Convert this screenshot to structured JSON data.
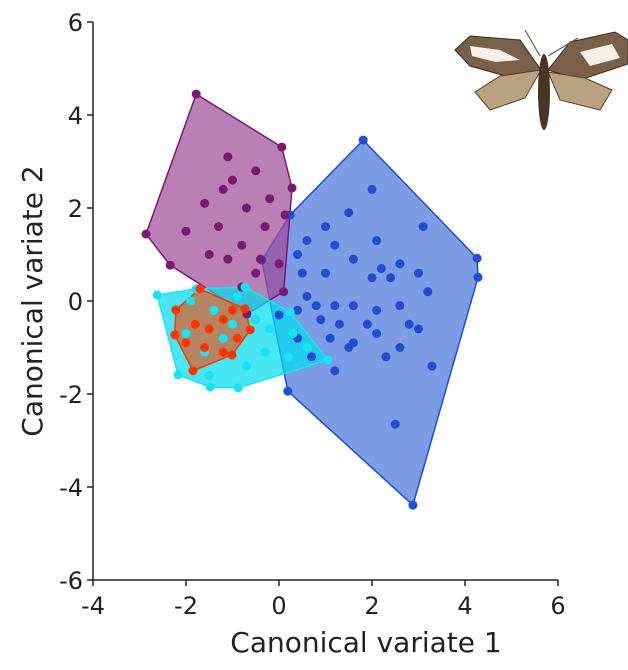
{
  "chart_data": {
    "type": "scatter",
    "x_label": "Canonical variate 1",
    "y_label": "Canonical variate 2",
    "xlim": [
      -4,
      6
    ],
    "ylim": [
      -6,
      6
    ],
    "xticks": [
      -4,
      -2,
      0,
      2,
      4,
      6
    ],
    "yticks": [
      -6,
      -4,
      -2,
      0,
      2,
      4,
      6
    ],
    "hulls": true,
    "series": [
      {
        "color": "#1f4fd0",
        "hull_color": "#4a76dc",
        "x": [
          1.81,
          4.26,
          4.28,
          3.29,
          2.88,
          0.19,
          -0.37,
          0.24,
          2.0,
          1.5,
          1.0,
          0.6,
          1.2,
          2.1,
          3.1,
          0.4,
          1.6,
          2.2,
          2.6,
          0.5,
          1.0,
          2.0,
          2.4,
          3.0,
          3.2,
          0.6,
          0.8,
          1.2,
          1.6,
          2.1,
          2.6,
          0.9,
          1.3,
          1.9,
          2.8,
          1.1,
          1.6,
          2.1,
          2.6,
          3.0,
          0.4,
          0.7,
          1.2,
          1.5,
          2.5,
          0.0,
          0.4,
          2.3
        ],
        "values": [
          3.46,
          0.92,
          0.51,
          -1.4,
          -4.39,
          -1.94,
          0.88,
          1.85,
          2.4,
          1.9,
          1.6,
          1.3,
          1.2,
          1.3,
          1.6,
          1.0,
          0.9,
          0.7,
          0.8,
          0.6,
          0.6,
          0.5,
          0.5,
          0.6,
          0.2,
          0.1,
          -0.1,
          -0.1,
          -0.1,
          -0.2,
          -0.1,
          -0.4,
          -0.5,
          -0.5,
          -0.5,
          -0.8,
          -0.9,
          -0.7,
          -1.0,
          -0.6,
          -0.8,
          -1.2,
          -1.5,
          -1.0,
          -2.65,
          -0.3,
          -0.2,
          -1.2
        ]
      },
      {
        "color": "#7a1a74",
        "hull_color": "#a04e98",
        "x": [
          -1.78,
          0.06,
          0.28,
          -2.86,
          -2.34,
          -0.69,
          0.13,
          -1.1,
          -1.0,
          -0.5,
          -1.2,
          -1.6,
          -0.7,
          -2.0,
          -1.5,
          -1.1,
          -0.8,
          -0.3,
          -0.5,
          -0.8,
          0.0,
          -0.2,
          -1.3,
          -0.4,
          0.1
        ],
        "values": [
          4.45,
          3.31,
          2.43,
          1.44,
          0.77,
          -0.28,
          1.85,
          3.1,
          2.6,
          2.8,
          2.4,
          2.1,
          2.0,
          1.5,
          1.0,
          0.9,
          1.2,
          1.6,
          0.6,
          0.3,
          0.8,
          2.2,
          1.6,
          0.9,
          0.2
        ]
      },
      {
        "color": "#16e4f4",
        "hull_color": "#00dcee",
        "x": [
          -2.62,
          -1.78,
          -0.73,
          0.24,
          1.05,
          -0.88,
          -1.48,
          -2.17,
          -1.9,
          -1.4,
          -1.0,
          -0.5,
          -0.2,
          0.3,
          -0.3,
          0.2,
          -1.6,
          -1.2,
          -0.7,
          -1.5,
          0.6,
          -2.0,
          -0.9
        ],
        "values": [
          0.13,
          0.26,
          0.3,
          -0.24,
          -1.27,
          -1.87,
          -1.85,
          -1.59,
          0.0,
          -0.2,
          -0.5,
          -0.4,
          -0.6,
          -0.7,
          -1.1,
          -1.2,
          -1.1,
          -0.8,
          -1.4,
          -1.6,
          -1.0,
          -0.7,
          0.1
        ]
      },
      {
        "color": "#ff3300",
        "hull_color": "#e0602a",
        "x": [
          -1.7,
          -0.73,
          -0.62,
          -1.01,
          -1.85,
          -2.24,
          -2.22,
          -1.8,
          -1.5,
          -1.2,
          -1.0,
          -1.6,
          -1.2,
          -0.9,
          -2.0
        ],
        "values": [
          0.26,
          -0.17,
          -0.62,
          -1.16,
          -1.5,
          -0.73,
          -0.19,
          -0.5,
          -0.6,
          -0.4,
          -0.2,
          -1.0,
          -1.1,
          -0.8,
          -0.9
        ]
      }
    ]
  }
}
